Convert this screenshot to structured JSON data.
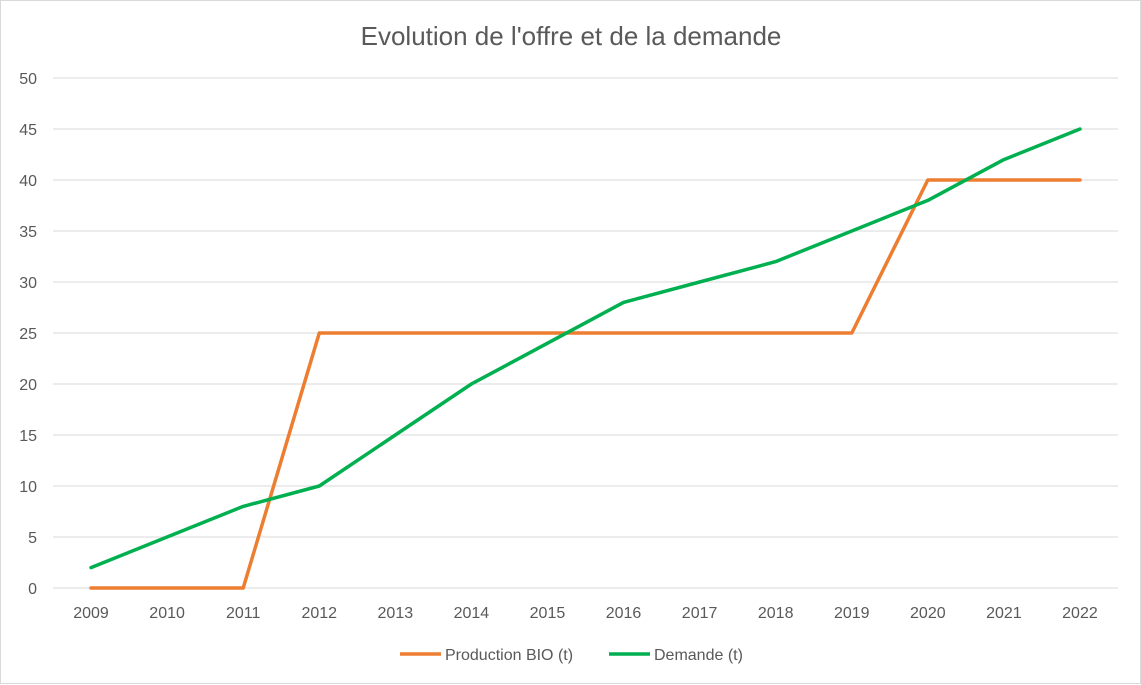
{
  "chart_data": {
    "type": "line",
    "title": "Evolution de l'offre et de la demande",
    "xlabel": "",
    "ylabel": "",
    "categories": [
      "2009",
      "2010",
      "2011",
      "2012",
      "2013",
      "2014",
      "2015",
      "2016",
      "2017",
      "2018",
      "2019",
      "2020",
      "2021",
      "2022"
    ],
    "ylim": [
      0,
      50
    ],
    "yticks": [
      0,
      5,
      10,
      15,
      20,
      25,
      30,
      35,
      40,
      45,
      50
    ],
    "grid": "horizontal",
    "legend_position": "bottom",
    "series": [
      {
        "name": "Production BIO (t)",
        "color": "#ed7d31",
        "values": [
          0,
          0,
          0,
          25,
          25,
          25,
          25,
          25,
          25,
          25,
          25,
          40,
          40,
          40
        ]
      },
      {
        "name": "Demande (t)",
        "color": "#00b050",
        "values": [
          2,
          5,
          8,
          10,
          15,
          20,
          24,
          28,
          30,
          32,
          35,
          38,
          42,
          45
        ]
      }
    ]
  }
}
